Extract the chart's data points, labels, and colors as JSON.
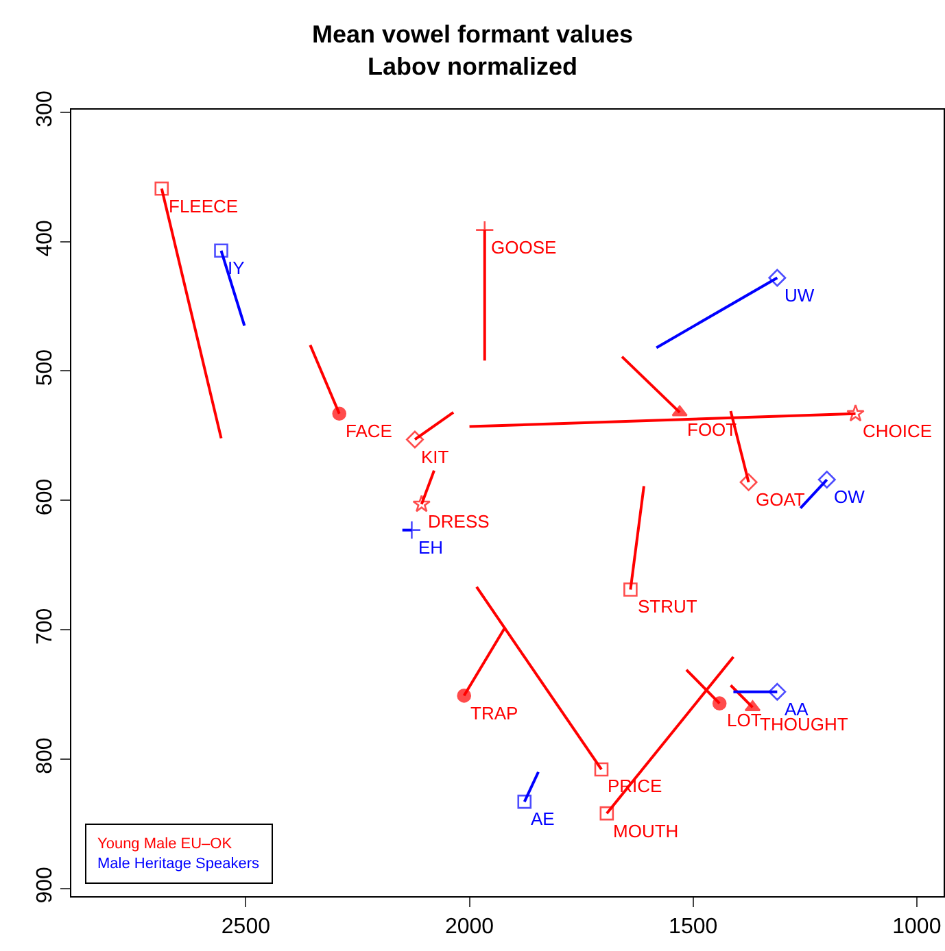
{
  "chart_data": {
    "type": "line",
    "title": "Mean vowel formant values\nLabov normalized",
    "xlim": [
      2890,
      940
    ],
    "xticks": [
      2500,
      2000,
      1500,
      1000
    ],
    "ylim": [
      906,
      298
    ],
    "yticks": [
      300,
      400,
      500,
      600,
      700,
      800,
      900
    ],
    "grid": false,
    "legend": "bottom left",
    "series": [
      {
        "name": "FLEECE",
        "color": "#ff0000",
        "marker": "square",
        "x": [
          2688,
          2555
        ],
        "values": [
          359,
          552
        ]
      },
      {
        "name": "GOOSE",
        "color": "#ff0000",
        "marker": "cross",
        "x": [
          1966,
          1966
        ],
        "values": [
          391,
          492
        ]
      },
      {
        "name": "FACE",
        "color": "#ff0000",
        "marker": "circle",
        "x": [
          2291,
          2356
        ],
        "values": [
          533,
          480
        ]
      },
      {
        "name": "KIT",
        "color": "#ff0000",
        "marker": "diamond",
        "x": [
          2122,
          2036
        ],
        "values": [
          553,
          532
        ]
      },
      {
        "name": "CHOICE",
        "color": "#ff0000",
        "marker": "star",
        "x": [
          1137,
          2000
        ],
        "values": [
          533,
          543
        ]
      },
      {
        "name": "FOOT",
        "color": "#ff0000",
        "marker": "triangle",
        "x": [
          1530,
          1659
        ],
        "values": [
          532,
          489
        ]
      },
      {
        "name": "GOAT",
        "color": "#ff0000",
        "marker": "diamond",
        "x": [
          1376,
          1416
        ],
        "values": [
          586,
          531
        ]
      },
      {
        "name": "DRESS",
        "color": "#ff0000",
        "marker": "star",
        "x": [
          2107,
          2079
        ],
        "values": [
          603,
          577
        ]
      },
      {
        "name": "STRUT",
        "color": "#ff0000",
        "marker": "square",
        "x": [
          1640,
          1610
        ],
        "values": [
          669,
          589
        ]
      },
      {
        "name": "TRAP",
        "color": "#ff0000",
        "marker": "circle",
        "x": [
          2012,
          1920
        ],
        "values": [
          751,
          698
        ]
      },
      {
        "name": "PRICE",
        "color": "#ff0000",
        "marker": "square",
        "x": [
          1705,
          1984
        ],
        "values": [
          808,
          667
        ]
      },
      {
        "name": "MOUTH",
        "color": "#ff0000",
        "marker": "square",
        "x": [
          1693,
          1410
        ],
        "values": [
          842,
          721
        ]
      },
      {
        "name": "LOT",
        "color": "#ff0000",
        "marker": "circle",
        "x": [
          1441,
          1515
        ],
        "values": [
          757,
          731
        ]
      },
      {
        "name": "THOUGHT",
        "color": "#ff0000",
        "marker": "triangle",
        "x": [
          1367,
          1416
        ],
        "values": [
          760,
          743
        ]
      },
      {
        "name": "IY",
        "color": "#0000ff",
        "marker": "square",
        "x": [
          2555,
          2503
        ],
        "values": [
          407,
          465
        ]
      },
      {
        "name": "UW",
        "color": "#0000ff",
        "marker": "diamond",
        "x": [
          1312,
          1582
        ],
        "values": [
          428,
          482
        ]
      },
      {
        "name": "OW",
        "color": "#0000ff",
        "marker": "diamond",
        "x": [
          1201,
          1260
        ],
        "values": [
          584,
          606
        ]
      },
      {
        "name": "EH",
        "color": "#0000ff",
        "marker": "cross",
        "x": [
          2129,
          2150
        ],
        "values": [
          623,
          623
        ]
      },
      {
        "name": "AA",
        "color": "#0000ff",
        "marker": "diamond",
        "x": [
          1312,
          1410
        ],
        "values": [
          748,
          748
        ]
      },
      {
        "name": "AE",
        "color": "#0000ff",
        "marker": "square",
        "x": [
          1877,
          1846
        ],
        "values": [
          833,
          810
        ]
      }
    ],
    "annotations": [
      "Young Male EU–OK",
      "Male Heritage Speakers"
    ]
  }
}
